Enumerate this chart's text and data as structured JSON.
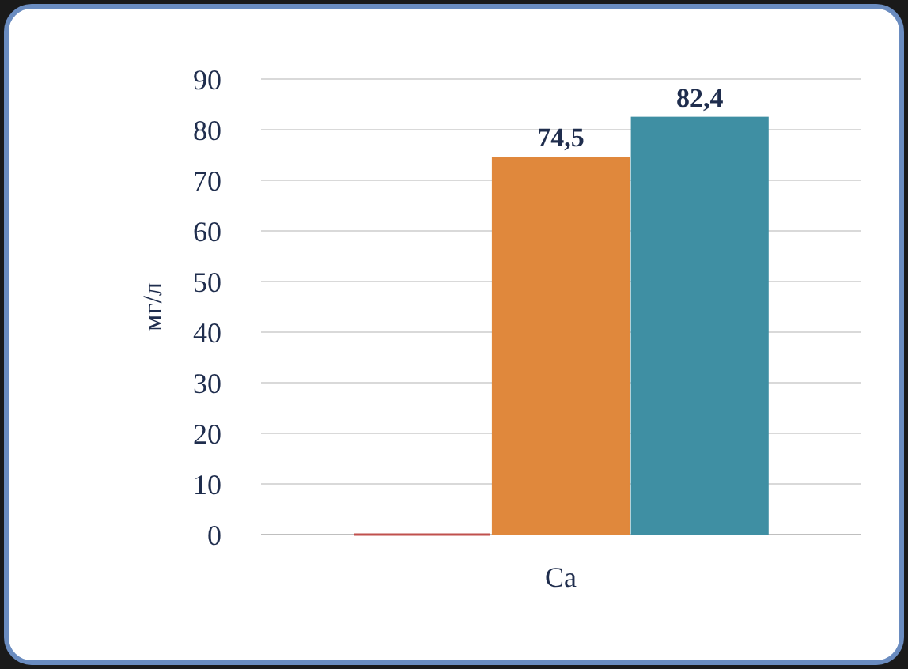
{
  "chart_data": {
    "type": "bar",
    "ylabel": "мг/л",
    "categories": [
      "Ca"
    ],
    "series": [
      {
        "color": "#c0504d",
        "values": [
          0
        ],
        "value_labels": [
          null
        ]
      },
      {
        "color": "#e0883c",
        "values": [
          74.5
        ],
        "value_labels": [
          "74,5"
        ]
      },
      {
        "color": "#3f8fa3",
        "values": [
          82.4
        ],
        "value_labels": [
          "82,4"
        ]
      }
    ],
    "ylim": [
      0,
      90
    ],
    "yticks": [
      0,
      10,
      20,
      30,
      40,
      50,
      60,
      70,
      80,
      90
    ],
    "grid": "y"
  }
}
